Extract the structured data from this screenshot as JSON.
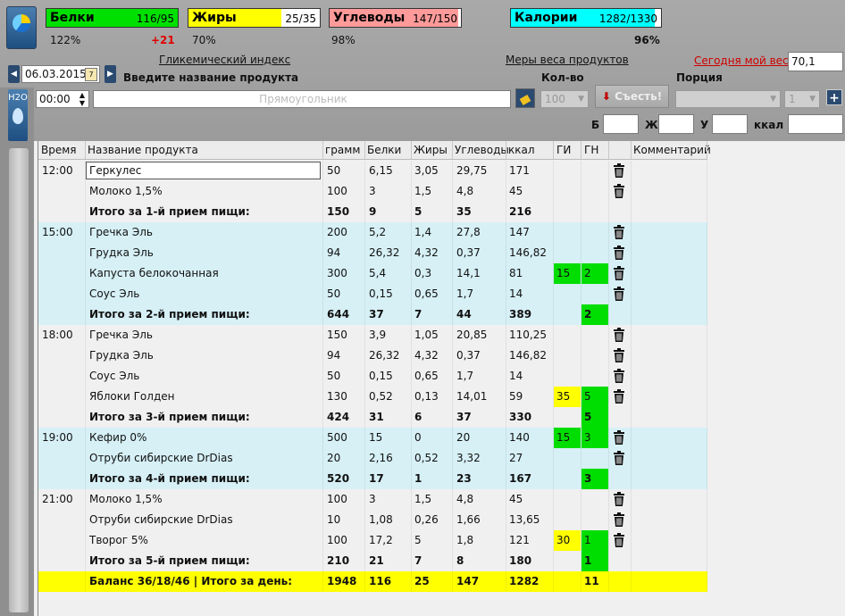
{
  "meters": [
    {
      "name": "Белки",
      "value": "116/95",
      "pct": "122%",
      "delta": "+21",
      "fill_fraction": 1.0,
      "color": "#00e000"
    },
    {
      "name": "Жиры",
      "value": "25/35",
      "pct": "70%",
      "fill_fraction": 0.71,
      "color": "#ffff00"
    },
    {
      "name": "Углеводы",
      "value": "147/150",
      "pct": "98%",
      "fill_fraction": 0.98,
      "color": "#ff9a9a"
    },
    {
      "name": "Калории",
      "value": "1282/1330",
      "pct": "96%",
      "fill_fraction": 0.96,
      "color": "#00ffff"
    }
  ],
  "links": {
    "glycemic": "Гликемический индекс",
    "measures": "Меры веса продуктов",
    "my_weight": "Сегодня мой вес:"
  },
  "weight_value": "70,1",
  "date": "06.03.2015",
  "product_prompt": "Введите название продукта",
  "time_value": "00:00",
  "product_placeholder": "Прямоугольник",
  "qty_label": "Кол-во",
  "qty_value": "100",
  "portion_label": "Порция",
  "portion_count": "1",
  "eat_button": "Съесть!",
  "h2o": "H2O",
  "calc_labels": {
    "b": "Б",
    "zh": "Ж",
    "u": "У",
    "kcal": "ккал"
  },
  "columns": [
    "Время",
    "Название продукта",
    "грамм",
    "Белки",
    "Жиры",
    "Углеводы",
    "ккал",
    "ГИ",
    "ГН",
    "Комментарий"
  ],
  "rows": [
    {
      "time": "12:00",
      "name": "Геркулес",
      "g": "50",
      "b": "6,15",
      "f": "3,05",
      "c": "29,75",
      "k": "171",
      "gi": "",
      "gn": "",
      "trash": true,
      "bg": "#f0f0f0"
    },
    {
      "time": "",
      "name": "Молоко 1,5%",
      "g": "100",
      "b": "3",
      "f": "1,5",
      "c": "4,8",
      "k": "45",
      "gi": "",
      "gn": "",
      "trash": true,
      "bg": "#f0f0f0"
    },
    {
      "time": "",
      "name": "Итого за 1-й прием пищи:",
      "g": "150",
      "b": "9",
      "f": "5",
      "c": "35",
      "k": "216",
      "gi": "",
      "gn": "",
      "trash": false,
      "total": true,
      "bg": "#f0f0f0"
    },
    {
      "time": "15:00",
      "name": "Гречка Эль",
      "g": "200",
      "b": "5,2",
      "f": "1,4",
      "c": "27,8",
      "k": "147",
      "gi": "",
      "gn": "",
      "trash": true,
      "bg": "#d6f0f6"
    },
    {
      "time": "",
      "name": "Грудка Эль",
      "g": "94",
      "b": "26,32",
      "f": "4,32",
      "c": "0,37",
      "k": "146,82",
      "gi": "",
      "gn": "",
      "trash": true,
      "bg": "#d6f0f6"
    },
    {
      "time": "",
      "name": "Капуста белокочанная",
      "g": "300",
      "b": "5,4",
      "f": "0,3",
      "c": "14,1",
      "k": "81",
      "gi": "15",
      "gn": "2",
      "gi_color": "#00dd00",
      "gn_color": "#00dd00",
      "trash": true,
      "bg": "#d6f0f6"
    },
    {
      "time": "",
      "name": "Соус Эль",
      "g": "50",
      "b": "0,15",
      "f": "0,65",
      "c": "1,7",
      "k": "14",
      "gi": "",
      "gn": "",
      "trash": true,
      "bg": "#d6f0f6"
    },
    {
      "time": "",
      "name": "Итого за 2-й прием пищи:",
      "g": "644",
      "b": "37",
      "f": "7",
      "c": "44",
      "k": "389",
      "gi": "",
      "gn": "2",
      "gn_color": "#00dd00",
      "trash": false,
      "total": true,
      "bg": "#d6f0f6"
    },
    {
      "time": "18:00",
      "name": "Гречка Эль",
      "g": "150",
      "b": "3,9",
      "f": "1,05",
      "c": "20,85",
      "k": "110,25",
      "gi": "",
      "gn": "",
      "trash": true,
      "bg": "#f0f0f0"
    },
    {
      "time": "",
      "name": "Грудка Эль",
      "g": "94",
      "b": "26,32",
      "f": "4,32",
      "c": "0,37",
      "k": "146,82",
      "gi": "",
      "gn": "",
      "trash": true,
      "bg": "#f0f0f0"
    },
    {
      "time": "",
      "name": "Соус Эль",
      "g": "50",
      "b": "0,15",
      "f": "0,65",
      "c": "1,7",
      "k": "14",
      "gi": "",
      "gn": "",
      "trash": true,
      "bg": "#f0f0f0"
    },
    {
      "time": "",
      "name": "Яблоки Голден",
      "g": "130",
      "b": "0,52",
      "f": "0,13",
      "c": "14,01",
      "k": "59",
      "gi": "35",
      "gn": "5",
      "gi_color": "#ffff00",
      "gn_color": "#00dd00",
      "trash": true,
      "bg": "#f0f0f0"
    },
    {
      "time": "",
      "name": "Итого за 3-й прием пищи:",
      "g": "424",
      "b": "31",
      "f": "6",
      "c": "37",
      "k": "330",
      "gi": "",
      "gn": "5",
      "gn_color": "#00dd00",
      "trash": false,
      "total": true,
      "bg": "#f0f0f0"
    },
    {
      "time": "19:00",
      "name": "Кефир 0%",
      "g": "500",
      "b": "15",
      "f": "0",
      "c": "20",
      "k": "140",
      "gi": "15",
      "gn": "3",
      "gi_color": "#00dd00",
      "gn_color": "#00dd00",
      "trash": true,
      "bg": "#d6f0f6"
    },
    {
      "time": "",
      "name": "Отруби сибирские DrDias",
      "g": "20",
      "b": "2,16",
      "f": "0,52",
      "c": "3,32",
      "k": "27",
      "gi": "",
      "gn": "",
      "trash": true,
      "bg": "#d6f0f6"
    },
    {
      "time": "",
      "name": "Итого за 4-й прием пищи:",
      "g": "520",
      "b": "17",
      "f": "1",
      "c": "23",
      "k": "167",
      "gi": "",
      "gn": "3",
      "gn_color": "#00dd00",
      "trash": false,
      "total": true,
      "bg": "#d6f0f6"
    },
    {
      "time": "21:00",
      "name": "Молоко 1,5%",
      "g": "100",
      "b": "3",
      "f": "1,5",
      "c": "4,8",
      "k": "45",
      "gi": "",
      "gn": "",
      "trash": true,
      "bg": "#f0f0f0"
    },
    {
      "time": "",
      "name": "Отруби сибирские DrDias",
      "g": "10",
      "b": "1,08",
      "f": "0,26",
      "c": "1,66",
      "k": "13,65",
      "gi": "",
      "gn": "",
      "trash": true,
      "bg": "#f0f0f0"
    },
    {
      "time": "",
      "name": "Творог 5%",
      "g": "100",
      "b": "17,2",
      "f": "5",
      "c": "1,8",
      "k": "121",
      "gi": "30",
      "gn": "1",
      "gi_color": "#ffff00",
      "gn_color": "#00dd00",
      "trash": true,
      "bg": "#f0f0f0"
    },
    {
      "time": "",
      "name": "Итого за 5-й прием пищи:",
      "g": "210",
      "b": "21",
      "f": "7",
      "c": "8",
      "k": "180",
      "gi": "",
      "gn": "1",
      "gn_color": "#00dd00",
      "trash": false,
      "total": true,
      "bg": "#f0f0f0"
    },
    {
      "time": "",
      "name": "Баланс 36/18/46  |  Итого за день:",
      "g": "1948",
      "b": "116",
      "f": "25",
      "c": "147",
      "k": "1282",
      "gi": "",
      "gn": "11",
      "trash": false,
      "total": true,
      "bg": "#ffff00"
    }
  ]
}
